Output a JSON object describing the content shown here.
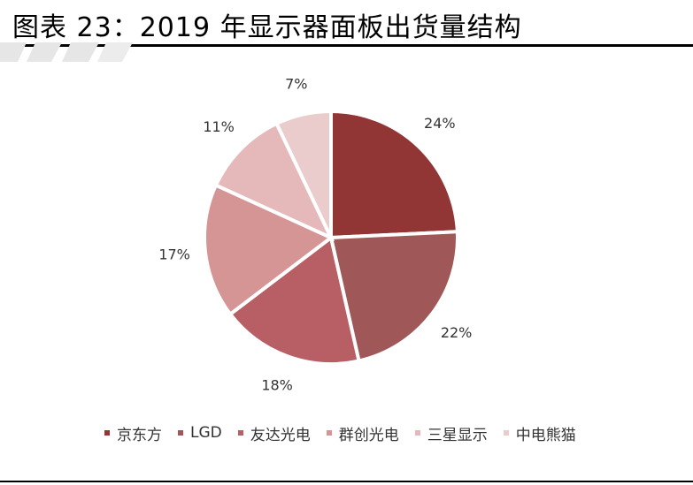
{
  "title": "图表 23：2019 年显示器面板出货量结构",
  "chart_data": {
    "type": "pie",
    "title": "图表 23：2019 年显示器面板出货量结构",
    "series": [
      {
        "name": "京东方",
        "value": 24,
        "label": "24%",
        "color": "#923535"
      },
      {
        "name": "LGD",
        "value": 22,
        "label": "22%",
        "color": "#A05757"
      },
      {
        "name": "友达光电",
        "value": 18,
        "label": "18%",
        "color": "#B75F64"
      },
      {
        "name": "群创光电",
        "value": 17,
        "label": "17%",
        "color": "#D59595"
      },
      {
        "name": "三星显示",
        "value": 11,
        "label": "11%",
        "color": "#E5B9B9"
      },
      {
        "name": "中电熊猫",
        "value": 7,
        "label": "7%",
        "color": "#E9CCCB"
      }
    ],
    "legend_position": "bottom"
  }
}
